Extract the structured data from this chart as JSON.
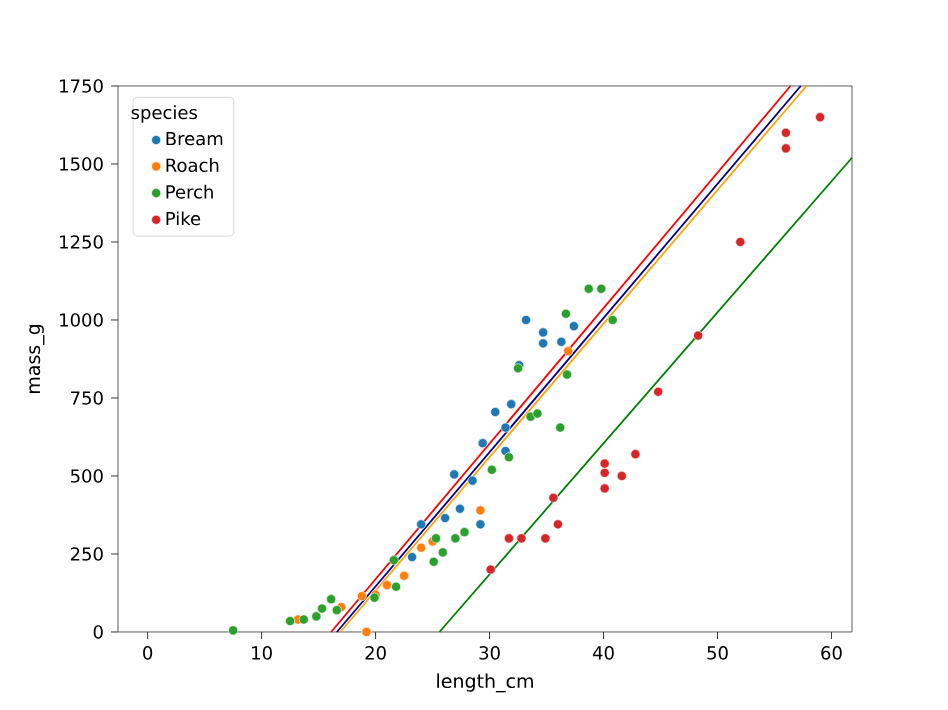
{
  "chart_data": {
    "type": "scatter",
    "xlabel": "length_cm",
    "ylabel": "mass_g",
    "legend_title": "species",
    "legend": "top left",
    "grid": false,
    "xlim": [
      -2.6,
      61.8
    ],
    "xticks": [
      0,
      10,
      20,
      30,
      40,
      50,
      60
    ],
    "ylim": [
      0,
      1750
    ],
    "yticks": [
      0,
      250,
      500,
      750,
      1000,
      1250,
      1500,
      1750
    ],
    "series": [
      {
        "name": "Bream",
        "marker": "circle",
        "color": "#1f77b4",
        "x": [
          23.2,
          24,
          26.1,
          26.9,
          27.4,
          28.5,
          29.2,
          29.4,
          30.5,
          31.4,
          31.4,
          31.9,
          32.6,
          33.2,
          34.7,
          34.7,
          36.3,
          37.4
        ],
        "values": [
          240,
          345,
          365,
          505,
          395,
          485,
          345,
          605,
          705,
          580,
          655,
          730,
          855,
          1000,
          925,
          960,
          930,
          980
        ]
      },
      {
        "name": "Roach",
        "marker": "circle",
        "color": "#ff7f0e",
        "x": [
          13.2,
          17,
          18.8,
          19.2,
          20,
          21,
          22.5,
          24,
          25,
          29.2,
          36.9
        ],
        "values": [
          40,
          80,
          115,
          0,
          120,
          150,
          180,
          270,
          290,
          390,
          900
        ]
      },
      {
        "name": "Perch",
        "marker": "circle",
        "color": "#2ca02c",
        "x": [
          7.5,
          12.5,
          13.7,
          14.8,
          15.3,
          16.1,
          16.6,
          19.9,
          21.6,
          21.8,
          25.1,
          25.3,
          25.9,
          27,
          27.8,
          30.2,
          31.7,
          32.5,
          33.6,
          34.2,
          36.2,
          36.7,
          36.8,
          38.7,
          39.8,
          40.8
        ],
        "values": [
          5,
          35,
          40,
          50,
          75,
          105,
          70,
          110,
          230,
          145,
          225,
          300,
          255,
          300,
          320,
          520,
          560,
          845,
          690,
          700,
          655,
          1020,
          825,
          1100,
          1100,
          1000
        ]
      },
      {
        "name": "Pike",
        "marker": "circle",
        "color": "#d62728",
        "x": [
          30.1,
          31.7,
          32.8,
          34.9,
          35.6,
          36,
          40.1,
          40.1,
          40.1,
          41.6,
          42.8,
          44.8,
          48.3,
          52,
          56,
          56,
          59
        ],
        "values": [
          200,
          300,
          300,
          300,
          430,
          345,
          460,
          510,
          540,
          500,
          570,
          770,
          950,
          1250,
          1550,
          1600,
          1650
        ]
      },
      {
        "type": "line",
        "marker": "none",
        "color": "#ff0000",
        "x": [
          16.1,
          56.4
        ],
        "values": [
          0,
          1750
        ]
      },
      {
        "type": "line",
        "marker": "none",
        "color": "#00008b",
        "x": [
          16.6,
          57.3
        ],
        "values": [
          0,
          1750
        ]
      },
      {
        "type": "line",
        "marker": "none",
        "color": "#ffa500",
        "x": [
          16.9,
          57.8
        ],
        "values": [
          0,
          1750
        ]
      },
      {
        "type": "line",
        "marker": "none",
        "color": "#008000",
        "x": [
          25.6,
          61.8
        ],
        "values": [
          0,
          1520
        ]
      }
    ]
  }
}
